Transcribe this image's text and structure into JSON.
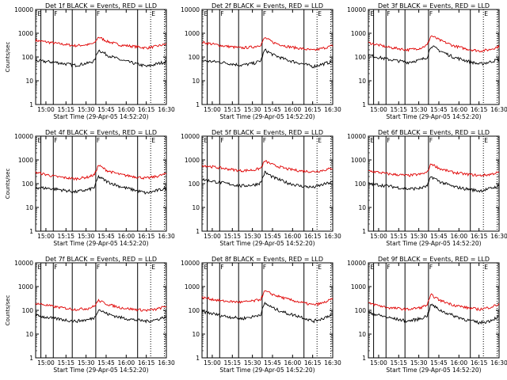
{
  "chart_data": {
    "type": "line",
    "xlabel": "Start Time (29-Apr-05 14:52:20)",
    "ylabel": "Counts/sec",
    "y_scale": "log",
    "ylim": [
      1,
      10000
    ],
    "y_ticks": [
      "1",
      "10",
      "100",
      "1000",
      "10000"
    ],
    "x_ticks": [
      "15:00",
      "15:15",
      "15:30",
      "15:45",
      "16:00",
      "16:15",
      "16:30"
    ],
    "xlim": [
      "14:52:20",
      "16:30:00"
    ],
    "series_colors": {
      "black": "#000000",
      "red": "#e00000"
    },
    "marker_labels": [
      "F",
      "F",
      "E"
    ],
    "panels": [
      {
        "title": "Det 1f BLACK = Events, RED = LLD",
        "show_ylabel": true,
        "black_kp": [
          [
            0,
            70
          ],
          [
            0.15,
            60
          ],
          [
            0.3,
            45
          ],
          [
            0.4,
            55
          ],
          [
            0.45,
            70
          ],
          [
            0.48,
            200
          ],
          [
            0.55,
            120
          ],
          [
            0.65,
            75
          ],
          [
            0.75,
            55
          ],
          [
            0.85,
            40
          ],
          [
            0.92,
            50
          ],
          [
            1,
            65
          ]
        ],
        "red_kp": [
          [
            0,
            500
          ],
          [
            0.15,
            380
          ],
          [
            0.3,
            300
          ],
          [
            0.4,
            330
          ],
          [
            0.45,
            380
          ],
          [
            0.48,
            700
          ],
          [
            0.55,
            450
          ],
          [
            0.65,
            320
          ],
          [
            0.75,
            280
          ],
          [
            0.85,
            240
          ],
          [
            0.92,
            280
          ],
          [
            1,
            350
          ]
        ]
      },
      {
        "title": "Det 2f BLACK = Events, RED = LLD",
        "show_ylabel": false,
        "black_kp": [
          [
            0,
            70
          ],
          [
            0.15,
            60
          ],
          [
            0.3,
            45
          ],
          [
            0.4,
            55
          ],
          [
            0.45,
            70
          ],
          [
            0.48,
            200
          ],
          [
            0.55,
            120
          ],
          [
            0.65,
            75
          ],
          [
            0.75,
            55
          ],
          [
            0.85,
            40
          ],
          [
            0.92,
            50
          ],
          [
            1,
            65
          ]
        ],
        "red_kp": [
          [
            0,
            420
          ],
          [
            0.15,
            300
          ],
          [
            0.3,
            240
          ],
          [
            0.4,
            270
          ],
          [
            0.45,
            330
          ],
          [
            0.48,
            650
          ],
          [
            0.55,
            400
          ],
          [
            0.65,
            280
          ],
          [
            0.75,
            230
          ],
          [
            0.85,
            190
          ],
          [
            0.92,
            230
          ],
          [
            1,
            300
          ]
        ]
      },
      {
        "title": "Det 3f BLACK = Events, RED = LLD",
        "show_ylabel": false,
        "black_kp": [
          [
            0,
            120
          ],
          [
            0.15,
            80
          ],
          [
            0.3,
            60
          ],
          [
            0.4,
            75
          ],
          [
            0.45,
            100
          ],
          [
            0.48,
            300
          ],
          [
            0.55,
            180
          ],
          [
            0.65,
            100
          ],
          [
            0.75,
            70
          ],
          [
            0.85,
            50
          ],
          [
            0.92,
            60
          ],
          [
            1,
            80
          ]
        ],
        "red_kp": [
          [
            0,
            400
          ],
          [
            0.15,
            260
          ],
          [
            0.3,
            200
          ],
          [
            0.4,
            240
          ],
          [
            0.45,
            320
          ],
          [
            0.48,
            800
          ],
          [
            0.55,
            500
          ],
          [
            0.65,
            300
          ],
          [
            0.75,
            220
          ],
          [
            0.85,
            180
          ],
          [
            0.92,
            200
          ],
          [
            1,
            280
          ]
        ]
      },
      {
        "title": "Det 4f BLACK = Events, RED = LLD",
        "show_ylabel": true,
        "black_kp": [
          [
            0,
            70
          ],
          [
            0.15,
            60
          ],
          [
            0.3,
            45
          ],
          [
            0.4,
            55
          ],
          [
            0.45,
            70
          ],
          [
            0.48,
            200
          ],
          [
            0.55,
            120
          ],
          [
            0.65,
            75
          ],
          [
            0.75,
            55
          ],
          [
            0.85,
            40
          ],
          [
            0.92,
            50
          ],
          [
            1,
            65
          ]
        ],
        "red_kp": [
          [
            0,
            300
          ],
          [
            0.15,
            200
          ],
          [
            0.3,
            160
          ],
          [
            0.4,
            190
          ],
          [
            0.45,
            240
          ],
          [
            0.48,
            600
          ],
          [
            0.55,
            350
          ],
          [
            0.65,
            240
          ],
          [
            0.75,
            200
          ],
          [
            0.85,
            170
          ],
          [
            0.92,
            200
          ],
          [
            1,
            260
          ]
        ]
      },
      {
        "title": "Det 5f BLACK = Events, RED = LLD",
        "show_ylabel": false,
        "black_kp": [
          [
            0,
            150
          ],
          [
            0.15,
            110
          ],
          [
            0.3,
            80
          ],
          [
            0.4,
            90
          ],
          [
            0.45,
            110
          ],
          [
            0.48,
            300
          ],
          [
            0.55,
            180
          ],
          [
            0.65,
            110
          ],
          [
            0.75,
            80
          ],
          [
            0.85,
            70
          ],
          [
            0.92,
            90
          ],
          [
            1,
            120
          ]
        ],
        "red_kp": [
          [
            0,
            600
          ],
          [
            0.15,
            450
          ],
          [
            0.3,
            350
          ],
          [
            0.4,
            380
          ],
          [
            0.45,
            450
          ],
          [
            0.48,
            900
          ],
          [
            0.55,
            600
          ],
          [
            0.65,
            420
          ],
          [
            0.75,
            350
          ],
          [
            0.85,
            320
          ],
          [
            0.92,
            360
          ],
          [
            1,
            450
          ]
        ]
      },
      {
        "title": "Det 6f BLACK = Events, RED = LLD",
        "show_ylabel": false,
        "black_kp": [
          [
            0,
            100
          ],
          [
            0.15,
            80
          ],
          [
            0.3,
            60
          ],
          [
            0.4,
            65
          ],
          [
            0.45,
            80
          ],
          [
            0.48,
            200
          ],
          [
            0.55,
            120
          ],
          [
            0.65,
            75
          ],
          [
            0.75,
            60
          ],
          [
            0.85,
            50
          ],
          [
            0.92,
            60
          ],
          [
            1,
            80
          ]
        ],
        "red_kp": [
          [
            0,
            350
          ],
          [
            0.15,
            260
          ],
          [
            0.3,
            220
          ],
          [
            0.4,
            250
          ],
          [
            0.45,
            300
          ],
          [
            0.48,
            700
          ],
          [
            0.55,
            420
          ],
          [
            0.65,
            300
          ],
          [
            0.75,
            250
          ],
          [
            0.85,
            220
          ],
          [
            0.92,
            240
          ],
          [
            1,
            300
          ]
        ]
      },
      {
        "title": "Det 7f BLACK = Events, RED = LLD",
        "show_ylabel": true,
        "black_kp": [
          [
            0,
            60
          ],
          [
            0.15,
            45
          ],
          [
            0.3,
            35
          ],
          [
            0.4,
            40
          ],
          [
            0.45,
            50
          ],
          [
            0.48,
            110
          ],
          [
            0.55,
            70
          ],
          [
            0.65,
            50
          ],
          [
            0.75,
            40
          ],
          [
            0.85,
            35
          ],
          [
            0.92,
            40
          ],
          [
            1,
            55
          ]
        ],
        "red_kp": [
          [
            0,
            200
          ],
          [
            0.15,
            140
          ],
          [
            0.3,
            110
          ],
          [
            0.4,
            120
          ],
          [
            0.45,
            150
          ],
          [
            0.48,
            260
          ],
          [
            0.55,
            180
          ],
          [
            0.65,
            130
          ],
          [
            0.75,
            110
          ],
          [
            0.85,
            100
          ],
          [
            0.92,
            110
          ],
          [
            1,
            150
          ]
        ]
      },
      {
        "title": "Det 8f BLACK = Events, RED = LLD",
        "show_ylabel": false,
        "black_kp": [
          [
            0,
            90
          ],
          [
            0.15,
            60
          ],
          [
            0.3,
            45
          ],
          [
            0.4,
            55
          ],
          [
            0.45,
            70
          ],
          [
            0.48,
            200
          ],
          [
            0.55,
            120
          ],
          [
            0.65,
            75
          ],
          [
            0.75,
            55
          ],
          [
            0.85,
            35
          ],
          [
            0.92,
            45
          ],
          [
            1,
            70
          ]
        ],
        "red_kp": [
          [
            0,
            350
          ],
          [
            0.15,
            250
          ],
          [
            0.3,
            220
          ],
          [
            0.4,
            250
          ],
          [
            0.45,
            300
          ],
          [
            0.48,
            650
          ],
          [
            0.55,
            450
          ],
          [
            0.65,
            300
          ],
          [
            0.75,
            220
          ],
          [
            0.85,
            170
          ],
          [
            0.92,
            200
          ],
          [
            1,
            300
          ]
        ]
      },
      {
        "title": "Det 9f BLACK = Events, RED = LLD",
        "show_ylabel": false,
        "black_kp": [
          [
            0,
            80
          ],
          [
            0.15,
            50
          ],
          [
            0.3,
            35
          ],
          [
            0.4,
            45
          ],
          [
            0.45,
            60
          ],
          [
            0.48,
            180
          ],
          [
            0.55,
            100
          ],
          [
            0.65,
            60
          ],
          [
            0.75,
            40
          ],
          [
            0.85,
            30
          ],
          [
            0.92,
            35
          ],
          [
            1,
            55
          ]
        ],
        "red_kp": [
          [
            0,
            200
          ],
          [
            0.15,
            130
          ],
          [
            0.3,
            110
          ],
          [
            0.4,
            130
          ],
          [
            0.45,
            170
          ],
          [
            0.48,
            450
          ],
          [
            0.55,
            260
          ],
          [
            0.65,
            170
          ],
          [
            0.75,
            130
          ],
          [
            0.85,
            110
          ],
          [
            0.92,
            130
          ],
          [
            1,
            180
          ]
        ]
      }
    ]
  }
}
